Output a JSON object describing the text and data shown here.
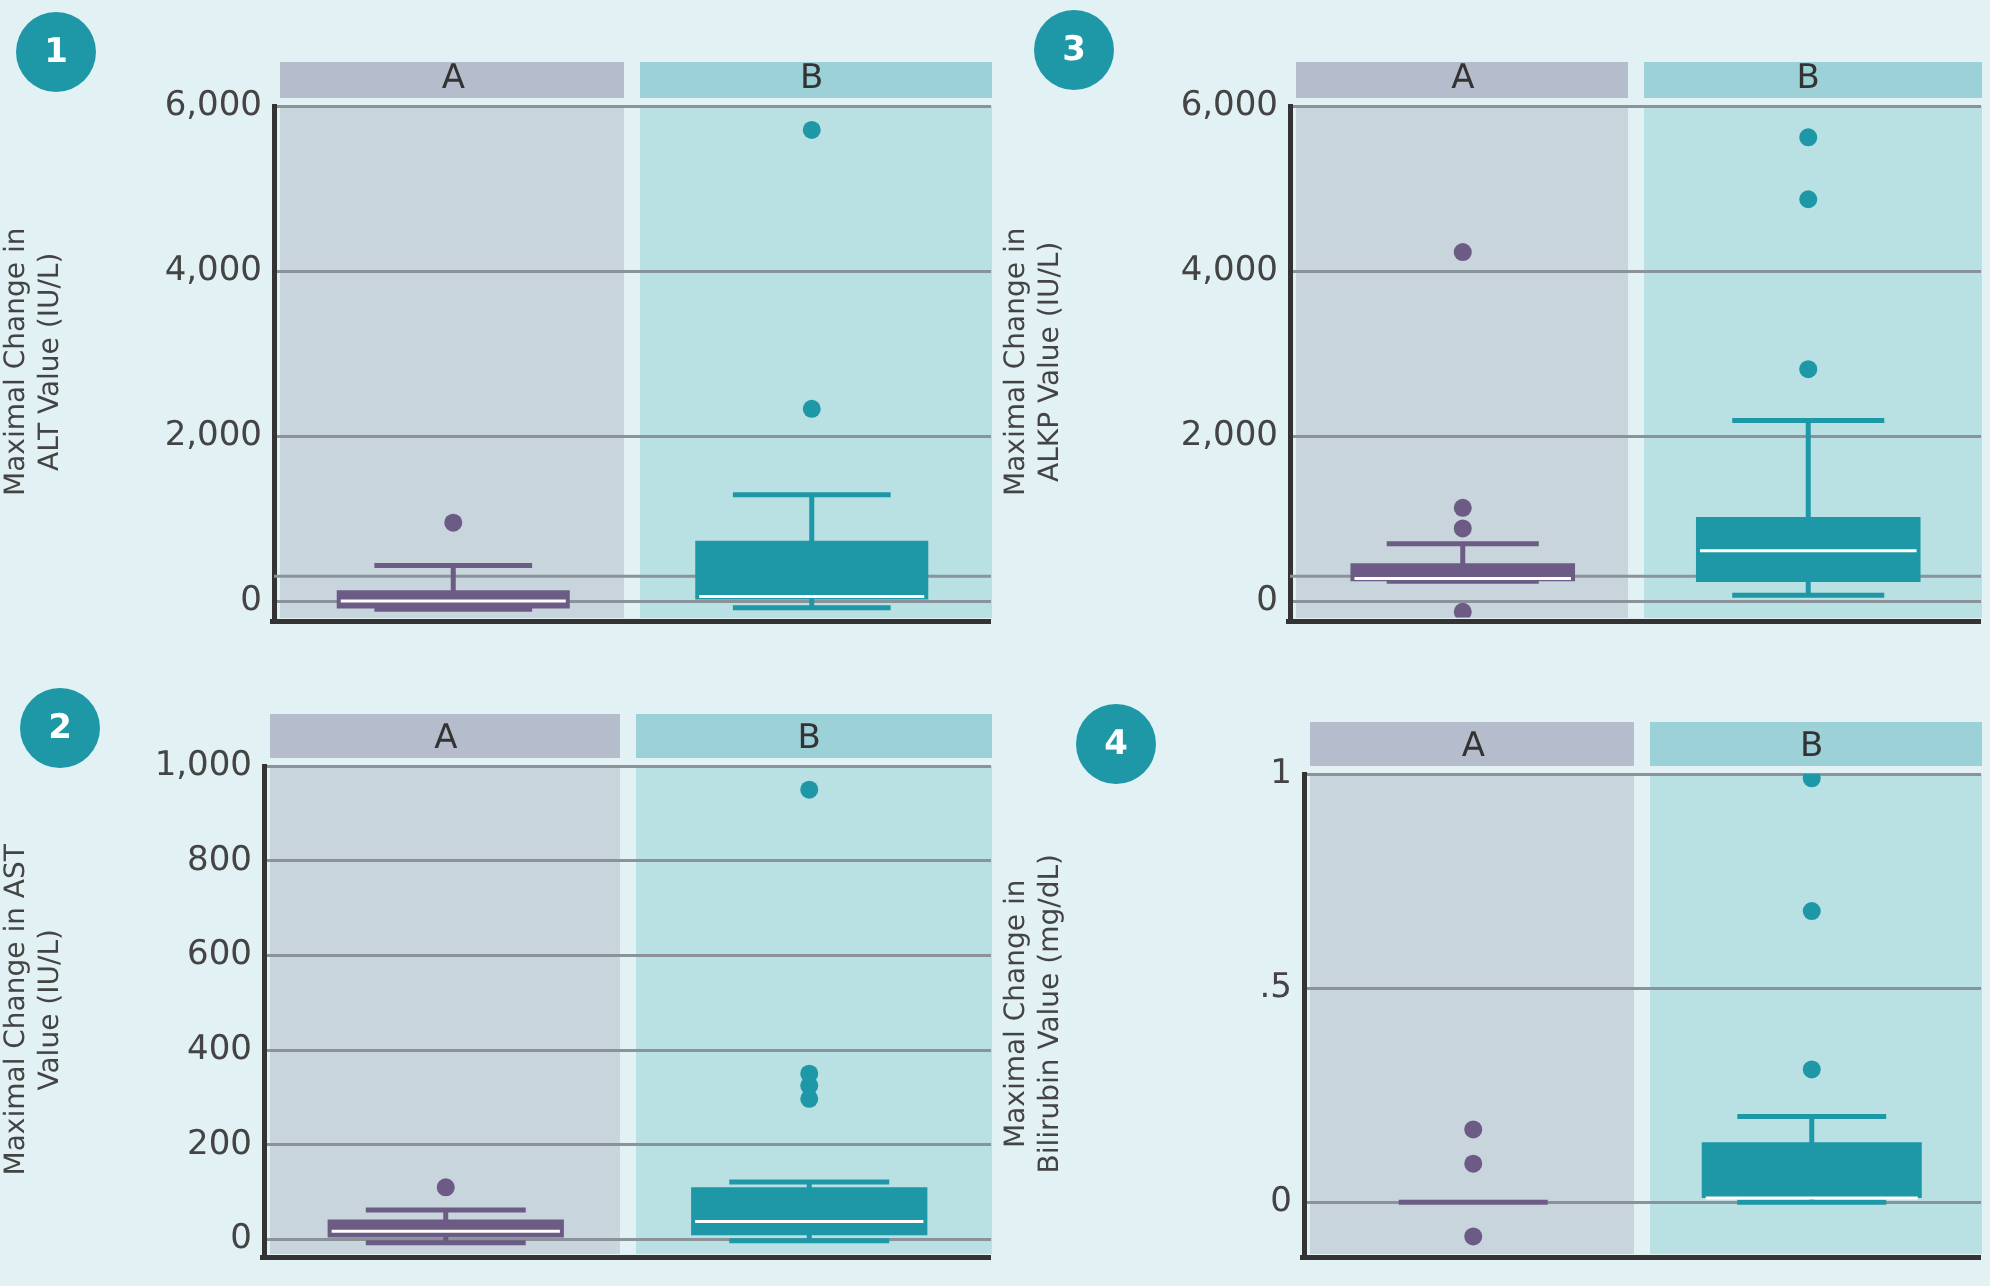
{
  "chart_data": [
    {
      "type": "box",
      "title": "1",
      "ylabel": "Maximal Change in ALT Value (IU/L)",
      "categories": [
        "A",
        "B"
      ],
      "colors": [
        "#6b5b85",
        "#1e98a6"
      ],
      "ylim": [
        -200,
        6000
      ],
      "yticks": [
        0,
        {
          "value": 2000,
          "label": "2,000"
        },
        {
          "value": 4000,
          "label": "4,000"
        },
        {
          "value": 6000,
          "label": "6,000"
        }
      ],
      "grid": "y",
      "ref_lines": [
        {
          "axis": "y",
          "value": 300
        }
      ],
      "boxes": [
        {
          "low": -100,
          "q1": -90,
          "median": 0,
          "q3": 130,
          "high": 430,
          "outliers": [
            950
          ]
        },
        {
          "low": -80,
          "q1": 0,
          "median": 55,
          "q3": 730,
          "high": 1290,
          "outliers": [
            2330,
            5710
          ]
        }
      ]
    },
    {
      "type": "box",
      "title": "3",
      "ylabel": "Maximal Change in ALKP Value (IU/L)",
      "categories": [
        "A",
        "B"
      ],
      "colors": [
        "#6b5b85",
        "#1e98a6"
      ],
      "ylim": [
        -200,
        6000
      ],
      "yticks": [
        0,
        {
          "value": 2000,
          "label": "2,000"
        },
        {
          "value": 4000,
          "label": "4,000"
        },
        {
          "value": 6000,
          "label": "6,000"
        }
      ],
      "grid": "y",
      "ref_lines": [
        {
          "axis": "y",
          "value": 300
        }
      ],
      "boxes": [
        {
          "low": 240,
          "q1": 240,
          "median": 275,
          "q3": 460,
          "high": 695,
          "outliers": [
            -130,
            880,
            1130,
            4230
          ]
        },
        {
          "low": 70,
          "q1": 230,
          "median": 610,
          "q3": 1020,
          "high": 2190,
          "outliers": [
            2810,
            4870,
            5620
          ]
        }
      ]
    },
    {
      "type": "box",
      "title": "2",
      "ylabel": "Maximal Change in AST Value (IU/L)",
      "categories": [
        "A",
        "B"
      ],
      "colors": [
        "#6b5b85",
        "#1e98a6"
      ],
      "ylim": [
        -30,
        1000
      ],
      "yticks": [
        0,
        200,
        400,
        600,
        800,
        {
          "value": 1000,
          "label": "1,000"
        }
      ],
      "grid": "y",
      "boxes": [
        {
          "low": -7,
          "q1": 4,
          "median": 17,
          "q3": 42,
          "high": 62,
          "outliers": [
            110
          ]
        },
        {
          "low": -3,
          "q1": 9,
          "median": 38,
          "q3": 110,
          "high": 121,
          "outliers": [
            297,
            325,
            350,
            950
          ]
        }
      ]
    },
    {
      "type": "box",
      "title": "4",
      "ylabel": "Maximal Change in Bilirubin Value (mg/dL)",
      "categories": [
        "A",
        "B"
      ],
      "colors": [
        "#6b5b85",
        "#1e98a6"
      ],
      "ylim": [
        -0.12,
        1
      ],
      "yticks": [
        0,
        {
          "value": 0.5,
          "label": ".5"
        },
        1
      ],
      "grid": "y",
      "boxes": [
        {
          "low": 0,
          "q1": 0,
          "median": 0,
          "q3": 0,
          "high": 0,
          "outliers": [
            -0.08,
            0.09,
            0.17
          ]
        },
        {
          "low": 0,
          "q1": 0.01,
          "median": 0.01,
          "q3": 0.14,
          "high": 0.2,
          "outliers": [
            0.31,
            0.68,
            0.99
          ]
        }
      ]
    }
  ]
}
